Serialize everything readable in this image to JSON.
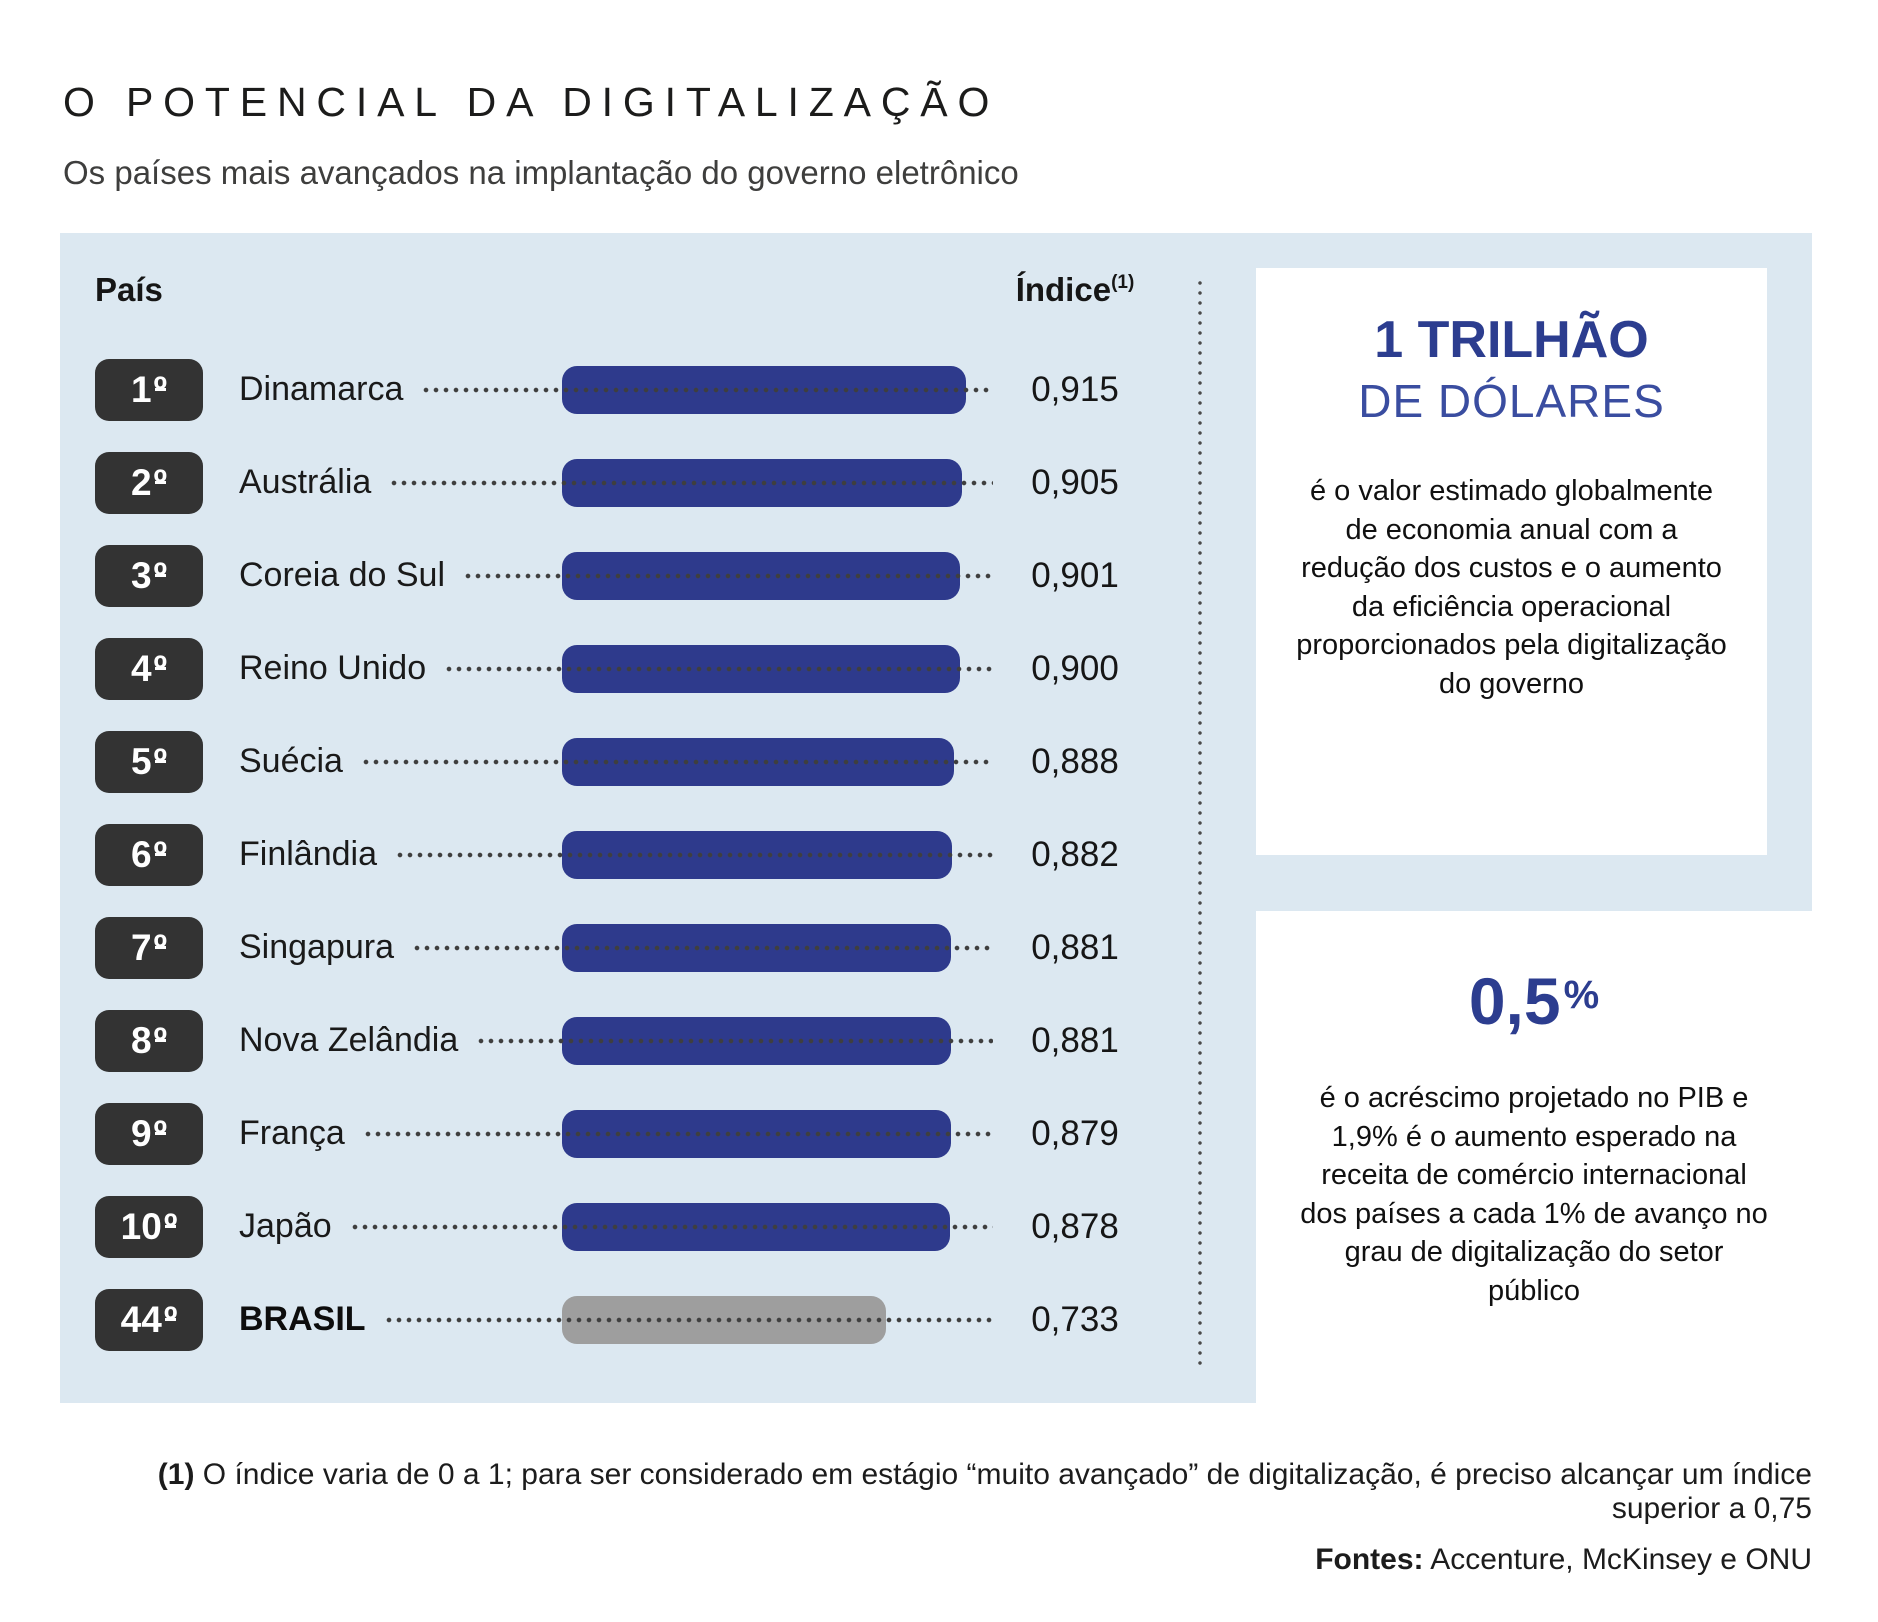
{
  "chart_data": {
    "type": "bar",
    "orientation": "horizontal",
    "title": "O POTENCIAL DA DIGITALIZAÇÃO",
    "subtitle": "Os países mais avançados na implantação do governo eletrônico",
    "column_headers": {
      "country": "País",
      "index": "Índice",
      "footnote_ref": "(1)"
    },
    "value_range": [
      0,
      1
    ],
    "grid": false,
    "rows": [
      {
        "rank": "1",
        "ordinal": "º",
        "country": "Dinamarca",
        "value": 0.915,
        "value_label": "0,915",
        "highlight": false
      },
      {
        "rank": "2",
        "ordinal": "º",
        "country": "Austrália",
        "value": 0.905,
        "value_label": "0,905",
        "highlight": false
      },
      {
        "rank": "3",
        "ordinal": "º",
        "country": "Coreia do Sul",
        "value": 0.901,
        "value_label": "0,901",
        "highlight": false
      },
      {
        "rank": "4",
        "ordinal": "º",
        "country": "Reino Unido",
        "value": 0.9,
        "value_label": "0,900",
        "highlight": false
      },
      {
        "rank": "5",
        "ordinal": "º",
        "country": "Suécia",
        "value": 0.888,
        "value_label": "0,888",
        "highlight": false
      },
      {
        "rank": "6",
        "ordinal": "º",
        "country": "Finlândia",
        "value": 0.882,
        "value_label": "0,882",
        "highlight": false
      },
      {
        "rank": "7",
        "ordinal": "º",
        "country": "Singapura",
        "value": 0.881,
        "value_label": "0,881",
        "highlight": false
      },
      {
        "rank": "8",
        "ordinal": "º",
        "country": "Nova Zelândia",
        "value": 0.881,
        "value_label": "0,881",
        "highlight": false
      },
      {
        "rank": "9",
        "ordinal": "º",
        "country": "França",
        "value": 0.879,
        "value_label": "0,879",
        "highlight": false
      },
      {
        "rank": "10",
        "ordinal": "º",
        "country": "Japão",
        "value": 0.878,
        "value_label": "0,878",
        "highlight": false
      },
      {
        "rank": "44",
        "ordinal": "º",
        "country": "BRASIL",
        "value": 0.733,
        "value_label": "0,733",
        "highlight": true
      }
    ],
    "footnote": {
      "marker": "(1)",
      "text": " O índice varia de 0 a 1; para ser considerado em estágio “muito avançado” de digitalização, é preciso alcançar um índice superior a 0,75"
    },
    "sources": {
      "label": "Fontes:",
      "text": " Accenture, McKinsey e ONU"
    },
    "colors": {
      "panel_bg": "#dce8f1",
      "bar": "#2e3a8c",
      "highlight_bar": "#9e9e9e",
      "badge_bg": "#333333",
      "accent_blue": "#2c3d8f",
      "accent_blue_light": "#3a4da0",
      "leader_dots": "#3f3f3f"
    }
  },
  "callouts": [
    {
      "headline": "1 TRILHÃO",
      "subheadline": "DE DÓLARES",
      "body": "é o valor estimado globalmente de economia anual com a redução dos custos e o aumento da eficiência operacional proporcionados pela digitalização do governo"
    },
    {
      "headline": "0,5",
      "headline_suffix": "%",
      "body": "é o acréscimo projetado no PIB e 1,9% é o aumento esperado na receita de comércio internacional dos países a cada 1% de avanço no grau de digitalização do setor público"
    }
  ]
}
